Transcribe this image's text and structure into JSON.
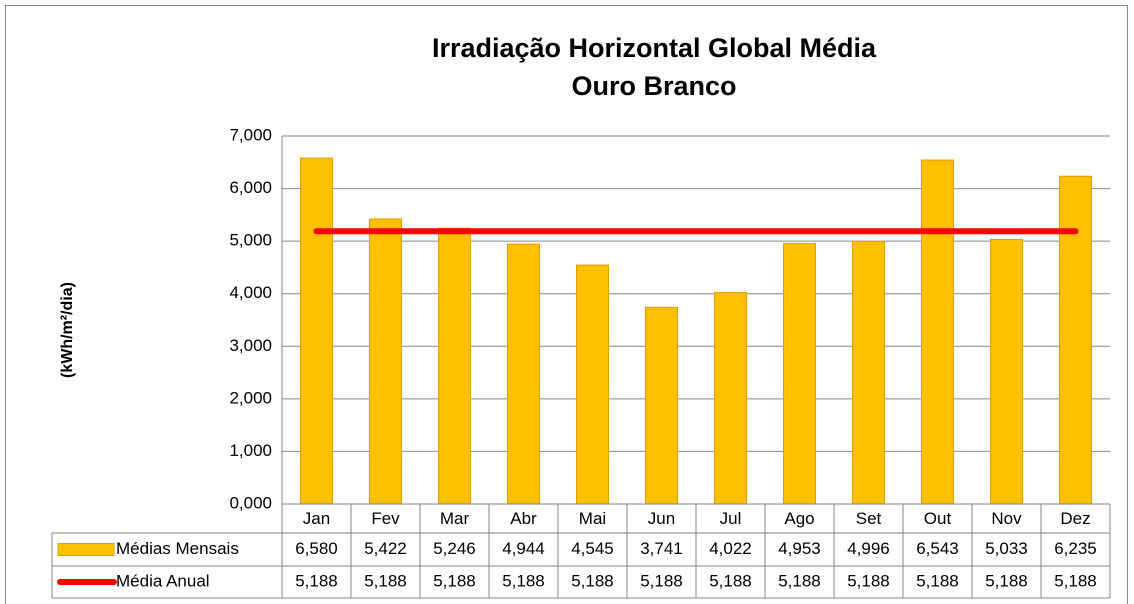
{
  "chart_data": {
    "type": "bar",
    "title": "Irradiação Horizontal Global Média",
    "subtitle": "Ouro Branco",
    "y_label": "(kWh/m²/dia)",
    "categories": [
      "Jan",
      "Fev",
      "Mar",
      "Abr",
      "Mai",
      "Jun",
      "Jul",
      "Ago",
      "Set",
      "Out",
      "Nov",
      "Dez"
    ],
    "series": [
      {
        "name": "Médias Mensais",
        "type": "bar",
        "color": "#ffc000",
        "values": [
          6.58,
          5.422,
          5.246,
          4.944,
          4.545,
          3.741,
          4.022,
          4.953,
          4.996,
          6.543,
          5.033,
          6.235
        ],
        "value_labels": [
          "6,580",
          "5,422",
          "5,246",
          "4,944",
          "4,545",
          "3,741",
          "4,022",
          "4,953",
          "4,996",
          "6,543",
          "5,033",
          "6,235"
        ]
      },
      {
        "name": "Média Anual",
        "type": "line",
        "color": "#ff0000",
        "values": [
          5.188,
          5.188,
          5.188,
          5.188,
          5.188,
          5.188,
          5.188,
          5.188,
          5.188,
          5.188,
          5.188,
          5.188
        ],
        "value_labels": [
          "5,188",
          "5,188",
          "5,188",
          "5,188",
          "5,188",
          "5,188",
          "5,188",
          "5,188",
          "5,188",
          "5,188",
          "5,188",
          "5,188"
        ]
      }
    ],
    "ylim": [
      0,
      7
    ],
    "yticks": [
      {
        "value": 0,
        "label": "0,000"
      },
      {
        "value": 1,
        "label": "1,000"
      },
      {
        "value": 2,
        "label": "2,000"
      },
      {
        "value": 3,
        "label": "3,000"
      },
      {
        "value": 4,
        "label": "4,000"
      },
      {
        "value": 5,
        "label": "5,000"
      },
      {
        "value": 6,
        "label": "6,000"
      },
      {
        "value": 7,
        "label": "7,000"
      }
    ],
    "grid": true
  }
}
